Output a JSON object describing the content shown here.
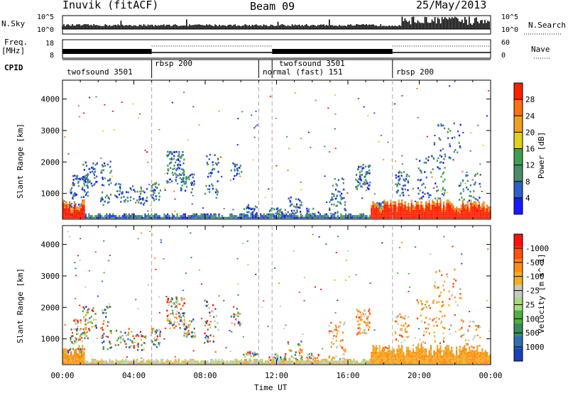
{
  "header": {
    "station": "Inuvik (fitACF)",
    "beam": "Beam 09",
    "date": "25/May/2013"
  },
  "top_panels": {
    "nsky_label": "N.Sky",
    "nsky_ticks": [
      "10^5",
      "10^0"
    ],
    "nsearch_label": "N.Search",
    "nsearch_ticks": [
      "10^5",
      "10^0"
    ],
    "freq_label_1": "Freq.",
    "freq_label_2": "[MHz]",
    "freq_ticks": [
      "18",
      "8"
    ],
    "nave_label": "Nave",
    "nave_ticks": [
      "60",
      "0"
    ],
    "cpid_label": "CPID",
    "modes": [
      {
        "name": "twofsound 3501",
        "start_hour": 0.0
      },
      {
        "name": "rbsp 200",
        "start_hour": 5.0
      },
      {
        "name": "normal (fast) 151",
        "start_hour": 11.0
      },
      {
        "name": "twofsound 3501",
        "start_hour": 11.75
      },
      {
        "name": "rbsp 200",
        "start_hour": 18.5
      }
    ]
  },
  "chart_data": [
    {
      "type": "heatmap",
      "title": "",
      "ylabel": "Slant Range [km]",
      "xlabel": "",
      "xlim": [
        0,
        24
      ],
      "ylim": [
        180,
        4600
      ],
      "yticks": [
        1000,
        2000,
        3000,
        4000
      ],
      "colorbar": {
        "label": "Power [dB]",
        "ticks": [
          "4",
          "8",
          "12",
          "16",
          "20",
          "24",
          "28"
        ],
        "colors": [
          "#1a1aff",
          "#2f5fc8",
          "#4a8a6a",
          "#3f9e52",
          "#e0d020",
          "#f0a020",
          "#ff7010",
          "#ff2000"
        ]
      }
    },
    {
      "type": "heatmap",
      "title": "",
      "ylabel": "Slant Range [km]",
      "xlabel": "Time UT",
      "xlim": [
        0,
        24
      ],
      "ylim": [
        180,
        4600
      ],
      "yticks": [
        1000,
        2000,
        3000,
        4000
      ],
      "xticks": [
        "00:00",
        "04:00",
        "08:00",
        "12:00",
        "16:00",
        "20:00",
        "00:00"
      ],
      "colorbar": {
        "label": "Velocity [m s^-1]",
        "ticks": [
          "1000",
          "500",
          "100",
          "25",
          "-25",
          "-100",
          "-500",
          "-1000"
        ],
        "colors": [
          "#1a3fbf",
          "#2f6fb0",
          "#3a8a5a",
          "#50b040",
          "#a8d880",
          "#c8c8c0",
          "#f0b020",
          "#ff8c10",
          "#ff5010",
          "#ff1010"
        ]
      }
    }
  ],
  "colors": {
    "power_high": "#ff2000",
    "power_mid": "#ff7010",
    "power_low": "#2f5fc8",
    "velocity_neg": "#ff8c10",
    "velocity_pos": "#3a8a5a",
    "ground": "#c8c8c0"
  }
}
